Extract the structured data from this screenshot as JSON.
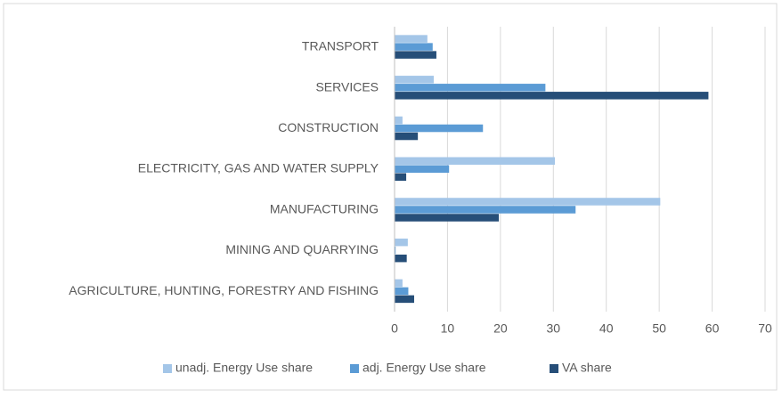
{
  "chart_data": {
    "type": "hbar",
    "categories": [
      "TRANSPORT",
      "SERVICES",
      "CONSTRUCTION",
      "ELECTRICITY, GAS AND WATER SUPPLY",
      "MANUFACTURING",
      "MINING AND QUARRYING",
      "AGRICULTURE, HUNTING, FORESTRY AND FISHING"
    ],
    "series": [
      {
        "name": "unadj. Energy Use share",
        "color": "#a4c6e8",
        "values": [
          6.2,
          7.4,
          1.5,
          30.3,
          50.2,
          2.5,
          1.5
        ]
      },
      {
        "name": "adj. Energy Use share",
        "color": "#5b9bd5",
        "values": [
          7.2,
          28.5,
          16.7,
          10.3,
          34.2,
          0.2,
          2.6
        ]
      },
      {
        "name": "VA share",
        "color": "#264e78",
        "values": [
          7.9,
          59.3,
          4.4,
          2.2,
          19.7,
          2.3,
          3.7
        ]
      }
    ],
    "xlim": [
      0,
      70
    ],
    "xticks": [
      0,
      10,
      20,
      30,
      40,
      50,
      60,
      70
    ],
    "grid": true,
    "legend": "bottom"
  }
}
